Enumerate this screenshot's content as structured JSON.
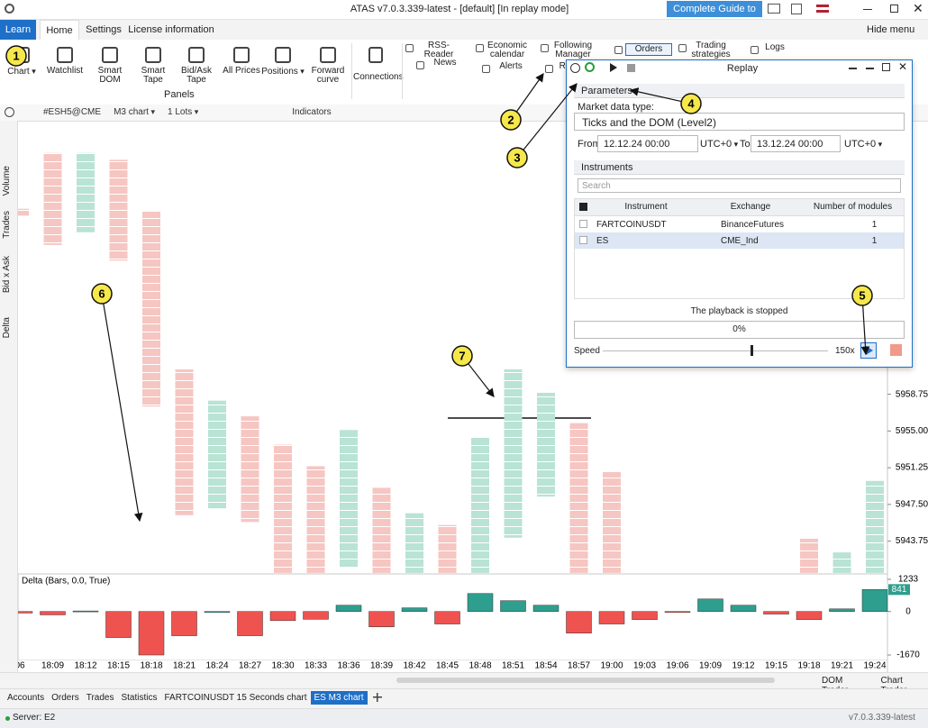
{
  "window": {
    "title": "ATAS v7.0.3.339-latest - [default] [In replay mode]",
    "guide_button": "Complete Guide to ATAS"
  },
  "menu": {
    "tabs": [
      "Learn",
      "Home",
      "Settings",
      "License information"
    ],
    "hide_menu": "Hide menu"
  },
  "ribbon": {
    "panel_buttons": [
      "Chart",
      "Watchlist",
      "Smart DOM",
      "Smart Tape",
      "Bid/Ask Tape",
      "All Prices",
      "Positions",
      "Forward curve"
    ],
    "panels_label": "Panels",
    "connections": "Connections",
    "tools": [
      "RSS-Reader",
      "Economic calendar",
      "Following Manager",
      "Orders",
      "Trading strategies",
      "Logs",
      "News",
      "Alerts",
      "Re"
    ]
  },
  "chart_toolbar": {
    "symbol": "#ESH5@CME",
    "timeframe": "M3 chart",
    "lots": "1 Lots",
    "indicators": "Indicators"
  },
  "side_panel": [
    "Volume",
    "Trades",
    "Bid x Ask",
    "Delta"
  ],
  "chart_data": {
    "type": "footprint",
    "categories": [
      "06",
      "18:09",
      "18:12",
      "18:15",
      "18:18",
      "18:21",
      "18:24",
      "18:27",
      "18:30",
      "18:33",
      "18:36",
      "18:39",
      "18:42",
      "18:45",
      "18:48",
      "18:51",
      "18:54",
      "18:57",
      "19:00",
      "19:03",
      "19:06",
      "19:09",
      "19:12",
      "19:15",
      "19:18",
      "19:21",
      "19:24"
    ],
    "high": [
      5977.7,
      5983.4,
      5983.4,
      5982.7,
      5977.4,
      5961.3,
      5958.1,
      5956.5,
      5953.6,
      5951.4,
      5955.1,
      5949.2,
      5946.6,
      5945.4,
      5954.3,
      5961.3,
      5958.9,
      5955.8,
      5950.8,
      null,
      null,
      null,
      null,
      null,
      5944.0,
      5942.6,
      5949.9
    ],
    "low": [
      5977.0,
      5974.0,
      5975.3,
      5972.4,
      5957.5,
      5946.4,
      5947.1,
      5945.7,
      5940.5,
      5940.5,
      5941.1,
      5940.5,
      5940.5,
      5940.5,
      5940.5,
      5944.1,
      5948.3,
      5940.5,
      5940.5,
      null,
      null,
      null,
      null,
      null,
      5940.5,
      5940.5,
      5940.5
    ],
    "ylim": [
      5940.4,
      5986.6
    ],
    "yticks": [
      5958.75,
      {
        "value": 5955,
        "label": "5955.00"
      },
      5951.25,
      {
        "value": 5947.5,
        "label": "5947.50"
      },
      5943.75
    ],
    "delta": {
      "title": "Delta (Bars, 0.0, True)",
      "values": [
        -60,
        -130,
        20,
        -1000,
        -1670,
        -930,
        0,
        -930,
        -350,
        -300,
        240,
        -590,
        140,
        -480,
        690,
        415,
        240,
        -830,
        -480,
        -310,
        -20,
        480,
        240,
        -100,
        -310,
        100,
        841
      ],
      "ylim": [
        -1670,
        1233
      ],
      "yticks": [
        1233,
        0,
        -1670
      ],
      "colors": {
        "up": "#2e9e8e",
        "down": "#ef5350"
      }
    }
  },
  "replay": {
    "title": "Replay",
    "parameters": "Parameters",
    "market_data_label": "Market data type:",
    "market_data_type": "Ticks and the DOM (Level2)",
    "from_label": "From:",
    "from": "12.12.24 00:00",
    "from_tz": "UTC+0",
    "to_label": "To:",
    "to": "13.12.24 00:00",
    "to_tz": "UTC+0",
    "instruments": "Instruments",
    "search": "Search",
    "columns": [
      "Instrument",
      "Exchange",
      "Number of modules"
    ],
    "rows": [
      [
        "FARTCOINUSDT",
        "BinanceFutures",
        1
      ],
      [
        "ES",
        "CME_Ind",
        1
      ]
    ],
    "status": "The playback is stopped",
    "progress": "0%",
    "speed_label": "Speed",
    "speed": "150x"
  },
  "chart_buttons": [
    "DOM Trader",
    "Chart Trader"
  ],
  "bottom_tabs": [
    "Accounts",
    "Orders",
    "Trades",
    "Statistics",
    "FARTCOINUSDT 15 Seconds chart",
    "ES M3 chart"
  ],
  "status_bar": {
    "server": "Server: E2",
    "version": "v7.0.3.339-latest"
  },
  "callouts": [
    "1",
    "2",
    "3",
    "4",
    "5",
    "6",
    "7"
  ]
}
